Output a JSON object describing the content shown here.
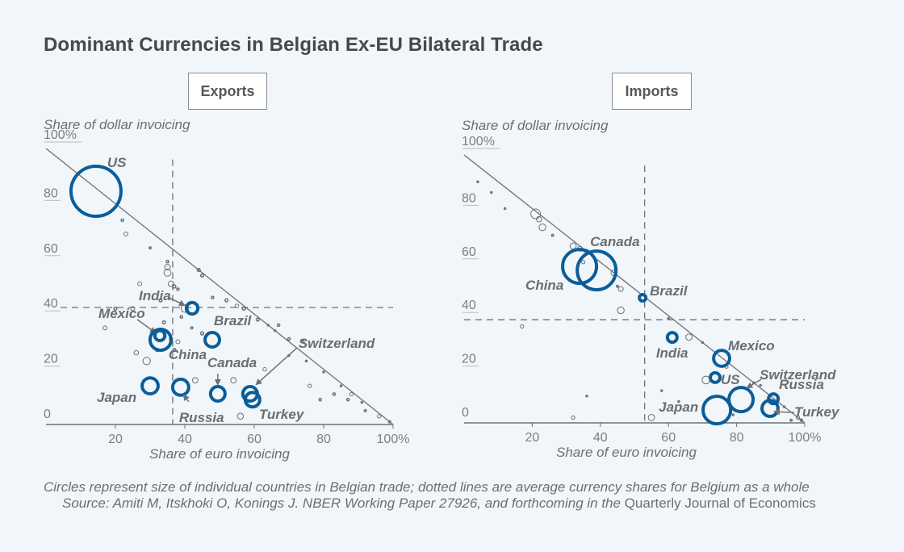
{
  "title": "Dominant Currencies in Belgian Ex-EU Bilateral Trade",
  "colors": {
    "highlight": "#0b5d99",
    "other": "#6d7076",
    "line": "#6d7076",
    "text": "#6b6f75"
  },
  "footer": {
    "note": "Circles represent size of individual countries in Belgian trade; dotted lines are average currency shares for Belgium as a whole",
    "source_prefix": "Source: Amiti M, Itskhoki O, Konings J. NBER Working Paper 27926, and forthcoming in the ",
    "source_journal": "Quarterly Journal of Economics"
  },
  "chart_data": [
    {
      "type": "scatter",
      "panel_title": "Exports",
      "ylabel": "Share of dollar invoicing",
      "xlabel": "Share of euro invoicing",
      "xlim": [
        0,
        100
      ],
      "ylim": [
        0,
        100
      ],
      "xticks": [
        "20",
        "40",
        "60",
        "80",
        "100%"
      ],
      "xtick_values": [
        20,
        40,
        60,
        80,
        100
      ],
      "yticks": [
        "0",
        "20",
        "40",
        "60",
        "80",
        "100%"
      ],
      "ytick_values": [
        0,
        20,
        40,
        60,
        80,
        100
      ],
      "reference_line": "x + y = 100",
      "average_euro_share": 36.5,
      "average_dollar_share": 42.4,
      "size_note": "circle size = relative country size in Belgian trade",
      "highlighted": [
        {
          "name": "US",
          "x": 14.4,
          "y": 84.5,
          "size": 1.0
        },
        {
          "name": "India",
          "x": 42.1,
          "y": 42.1,
          "size": 0.23
        },
        {
          "name": "Mexico",
          "x": 32.8,
          "y": 32.2,
          "size": 0.2
        },
        {
          "name": "China",
          "x": 33.0,
          "y": 30.7,
          "size": 0.42
        },
        {
          "name": "Brazil",
          "x": 47.9,
          "y": 30.7,
          "size": 0.29
        },
        {
          "name": "Canada",
          "x": 49.5,
          "y": 11.1,
          "size": 0.29
        },
        {
          "name": "Japan",
          "x": 30.0,
          "y": 14.0,
          "size": 0.32
        },
        {
          "name": "Russia",
          "x": 38.8,
          "y": 13.5,
          "size": 0.32
        },
        {
          "name": "Switzerland",
          "x": 58.8,
          "y": 11.1,
          "size": 0.29
        },
        {
          "name": "Turkey",
          "x": 59.5,
          "y": 9.0,
          "size": 0.29
        }
      ],
      "others": [
        [
          23,
          69,
          0.08
        ],
        [
          22,
          74,
          0.05
        ],
        [
          30,
          64,
          0.04
        ],
        [
          27,
          51,
          0.08
        ],
        [
          25,
          42,
          0.08
        ],
        [
          33,
          45,
          0.06
        ],
        [
          35,
          59,
          0.05
        ],
        [
          35,
          57,
          0.11
        ],
        [
          35,
          55,
          0.14
        ],
        [
          36,
          51,
          0.11
        ],
        [
          37,
          50,
          0.06
        ],
        [
          38,
          49,
          0.05
        ],
        [
          44,
          56,
          0.06
        ],
        [
          45,
          54,
          0.06
        ],
        [
          40,
          42,
          0.15
        ],
        [
          48,
          46,
          0.05
        ],
        [
          52,
          45,
          0.06
        ],
        [
          55,
          43,
          0.07
        ],
        [
          57,
          42,
          0.06
        ],
        [
          61,
          38,
          0.06
        ],
        [
          20,
          42,
          0.06
        ],
        [
          17,
          35,
          0.08
        ],
        [
          26,
          26,
          0.09
        ],
        [
          29,
          23,
          0.15
        ],
        [
          37,
          27,
          0.06
        ],
        [
          36,
          31,
          0.06
        ],
        [
          38,
          30,
          0.08
        ],
        [
          32,
          27,
          0.06
        ],
        [
          34,
          37,
          0.06
        ],
        [
          45,
          33,
          0.06
        ],
        [
          39,
          39,
          0.05
        ],
        [
          42,
          35,
          0.04
        ],
        [
          43,
          16,
          0.11
        ],
        [
          54,
          16,
          0.11
        ],
        [
          56,
          3,
          0.12
        ],
        [
          63,
          20,
          0.07
        ],
        [
          67,
          36,
          0.05
        ],
        [
          70,
          31,
          0.05
        ],
        [
          74,
          30,
          0.05
        ],
        [
          76,
          14,
          0.07
        ],
        [
          79,
          9,
          0.05
        ],
        [
          83,
          11,
          0.05
        ],
        [
          87,
          9,
          0.05
        ],
        [
          88,
          11,
          0.07
        ],
        [
          96,
          3,
          0.07
        ],
        [
          99,
          1,
          0.04
        ],
        [
          92,
          5,
          0.04
        ],
        [
          70,
          25,
          0.03
        ],
        [
          75,
          23,
          0.03
        ],
        [
          66,
          34,
          0.03
        ],
        [
          64,
          36,
          0.03
        ],
        [
          80,
          19,
          0.03
        ],
        [
          85,
          14,
          0.03
        ],
        [
          91,
          8,
          0.03
        ]
      ]
    },
    {
      "type": "scatter",
      "panel_title": "Imports",
      "ylabel": "Share of dollar invoicing",
      "xlabel": "Share of euro invoicing",
      "xlim": [
        0,
        100
      ],
      "ylim": [
        0,
        100
      ],
      "xticks": [
        "20",
        "40",
        "60",
        "80",
        "100%"
      ],
      "xtick_values": [
        20,
        40,
        60,
        80,
        100
      ],
      "yticks": [
        "0",
        "20",
        "40",
        "60",
        "80",
        "100%"
      ],
      "ytick_values": [
        0,
        20,
        40,
        60,
        80,
        100
      ],
      "reference_line": "x + y = 100",
      "average_euro_share": 53.0,
      "average_dollar_share": 38.5,
      "size_note": "circle size = relative country size in Belgian trade",
      "highlighted": [
        {
          "name": "China",
          "x": 33.9,
          "y": 58.4,
          "size": 0.7
        },
        {
          "name": "Canada",
          "x": 38.9,
          "y": 56.9,
          "size": 0.8
        },
        {
          "name": "Brazil",
          "x": 52.4,
          "y": 46.7,
          "size": 0.13
        },
        {
          "name": "India",
          "x": 61.1,
          "y": 31.9,
          "size": 0.2
        },
        {
          "name": "Mexico",
          "x": 75.6,
          "y": 24.1,
          "size": 0.33
        },
        {
          "name": "US",
          "x": 73.7,
          "y": 16.9,
          "size": 0.2
        },
        {
          "name": "Switzerland",
          "x": 81.3,
          "y": 8.7,
          "size": 0.5
        },
        {
          "name": "Japan",
          "x": 74.2,
          "y": 4.8,
          "size": 0.57
        },
        {
          "name": "Russia",
          "x": 90.8,
          "y": 9.0,
          "size": 0.2
        },
        {
          "name": "Turkey",
          "x": 89.8,
          "y": 5.4,
          "size": 0.33
        }
      ],
      "others": [
        [
          21,
          78,
          0.2
        ],
        [
          22,
          76,
          0.11
        ],
        [
          23,
          73,
          0.14
        ],
        [
          26,
          70,
          0.04
        ],
        [
          32,
          66,
          0.13
        ],
        [
          34,
          65,
          0.1
        ],
        [
          36,
          64,
          0.08
        ],
        [
          35,
          60,
          0.07
        ],
        [
          44,
          56,
          0.12
        ],
        [
          46,
          50,
          0.1
        ],
        [
          45,
          51,
          0.04
        ],
        [
          46,
          42,
          0.14
        ],
        [
          66,
          32,
          0.13
        ],
        [
          17,
          36,
          0.07
        ],
        [
          32,
          2,
          0.07
        ],
        [
          55,
          2,
          0.13
        ],
        [
          71,
          16,
          0.16
        ],
        [
          77,
          21,
          0.07
        ],
        [
          98,
          2,
          0.07
        ],
        [
          99,
          1,
          0.05
        ],
        [
          96,
          1,
          0.04
        ],
        [
          60,
          39,
          0.03
        ],
        [
          70,
          30,
          0.03
        ],
        [
          85,
          15,
          0.03
        ],
        [
          92,
          8,
          0.03
        ],
        [
          36,
          10,
          0.03
        ],
        [
          12,
          80,
          0.03
        ],
        [
          8,
          86,
          0.03
        ],
        [
          4,
          90,
          0.02
        ],
        [
          58,
          12,
          0.02
        ],
        [
          63,
          8,
          0.02
        ],
        [
          79,
          3,
          0.02
        ],
        [
          87,
          14,
          0.02
        ],
        [
          94,
          6,
          0.02
        ]
      ]
    }
  ]
}
